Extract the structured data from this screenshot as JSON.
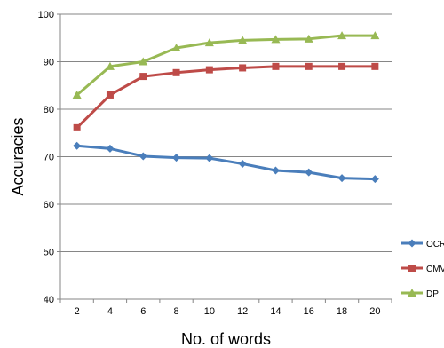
{
  "chart_data": {
    "type": "line",
    "title": "",
    "xlabel": "No. of words",
    "ylabel": "Accuracies",
    "x": [
      2,
      4,
      6,
      8,
      10,
      12,
      14,
      16,
      18,
      20
    ],
    "xticks": [
      "2",
      "4",
      "6",
      "8",
      "10",
      "12",
      "14",
      "16",
      "18",
      "20"
    ],
    "ylim": [
      40,
      100
    ],
    "yticks": [
      "40",
      "50",
      "60",
      "70",
      "80",
      "90",
      "100"
    ],
    "grid": "horizontal",
    "legend": "right",
    "series": [
      {
        "name": "OCR",
        "color": "#4a7ebb",
        "marker": "diamond",
        "values": [
          72.3,
          71.7,
          70.1,
          69.8,
          69.7,
          68.5,
          67.1,
          66.7,
          65.5,
          65.3
        ]
      },
      {
        "name": "CMV",
        "color": "#be4b48",
        "marker": "square",
        "values": [
          76.1,
          83.0,
          86.9,
          87.7,
          88.3,
          88.7,
          89.0,
          89.0,
          89.0,
          89.0
        ]
      },
      {
        "name": "DP",
        "color": "#98b954",
        "marker": "triangle",
        "values": [
          83.0,
          89.0,
          90.0,
          92.9,
          94.0,
          94.5,
          94.7,
          94.8,
          95.5,
          95.5
        ]
      }
    ]
  }
}
